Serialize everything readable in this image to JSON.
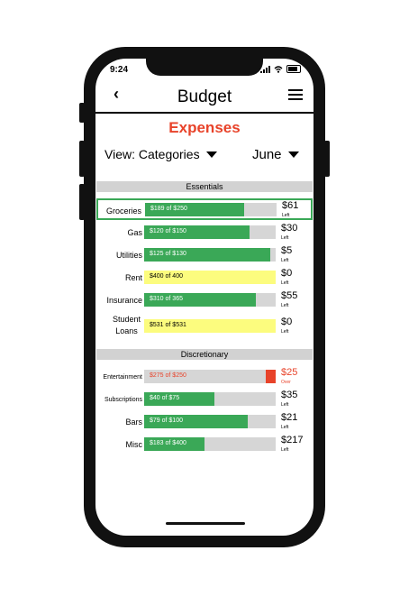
{
  "status": {
    "time": "9:24"
  },
  "header": {
    "back_icon": "‹",
    "title": "Budget"
  },
  "page_title": "Expenses",
  "view": {
    "label": "View: Categories"
  },
  "month": {
    "label": "June"
  },
  "sections": {
    "essentials": {
      "title": "Essentials",
      "rows": [
        {
          "label": "Groceries",
          "bar_text": "$189 of $250",
          "fill": 0.756,
          "amount": "$61",
          "note": "Left"
        },
        {
          "label": "Gas",
          "bar_text": "$120 of $150",
          "fill": 0.8,
          "amount": "$30",
          "note": "Left"
        },
        {
          "label": "Utilities",
          "bar_text": "$125 of $130",
          "fill": 0.96,
          "amount": "$5",
          "note": "Left"
        },
        {
          "label": "Rent",
          "bar_text": "$400 of 400",
          "fill": 1.0,
          "amount": "$0",
          "note": "Left"
        },
        {
          "label": "Insurance",
          "bar_text": "$310 of 365",
          "fill": 0.85,
          "amount": "$55",
          "note": "Left"
        },
        {
          "label_line1": "Student",
          "label_line2": "Loans",
          "bar_text": "$531 of $531",
          "fill": 1.0,
          "amount": "$0",
          "note": "Left"
        }
      ]
    },
    "discretionary": {
      "title": "Discretionary",
      "rows": [
        {
          "label": "Entertainment",
          "bar_text": "$275 of $250",
          "fill": 1.1,
          "amount": "$25",
          "note": "Over"
        },
        {
          "label": "Subscriptions",
          "bar_text": "$40 of $75",
          "fill": 0.533,
          "amount": "$35",
          "note": "Left"
        },
        {
          "label": "Bars",
          "bar_text": "$79 of $100",
          "fill": 0.79,
          "amount": "$21",
          "note": "Left"
        },
        {
          "label": "Misc",
          "bar_text": "$183 of $400",
          "fill": 0.4575,
          "amount": "$217",
          "note": "Left"
        }
      ]
    }
  },
  "colors": {
    "green": "#3aa857",
    "yellow": "#fcfc7e",
    "red": "#e8432a",
    "gray": "#d6d6d6"
  }
}
